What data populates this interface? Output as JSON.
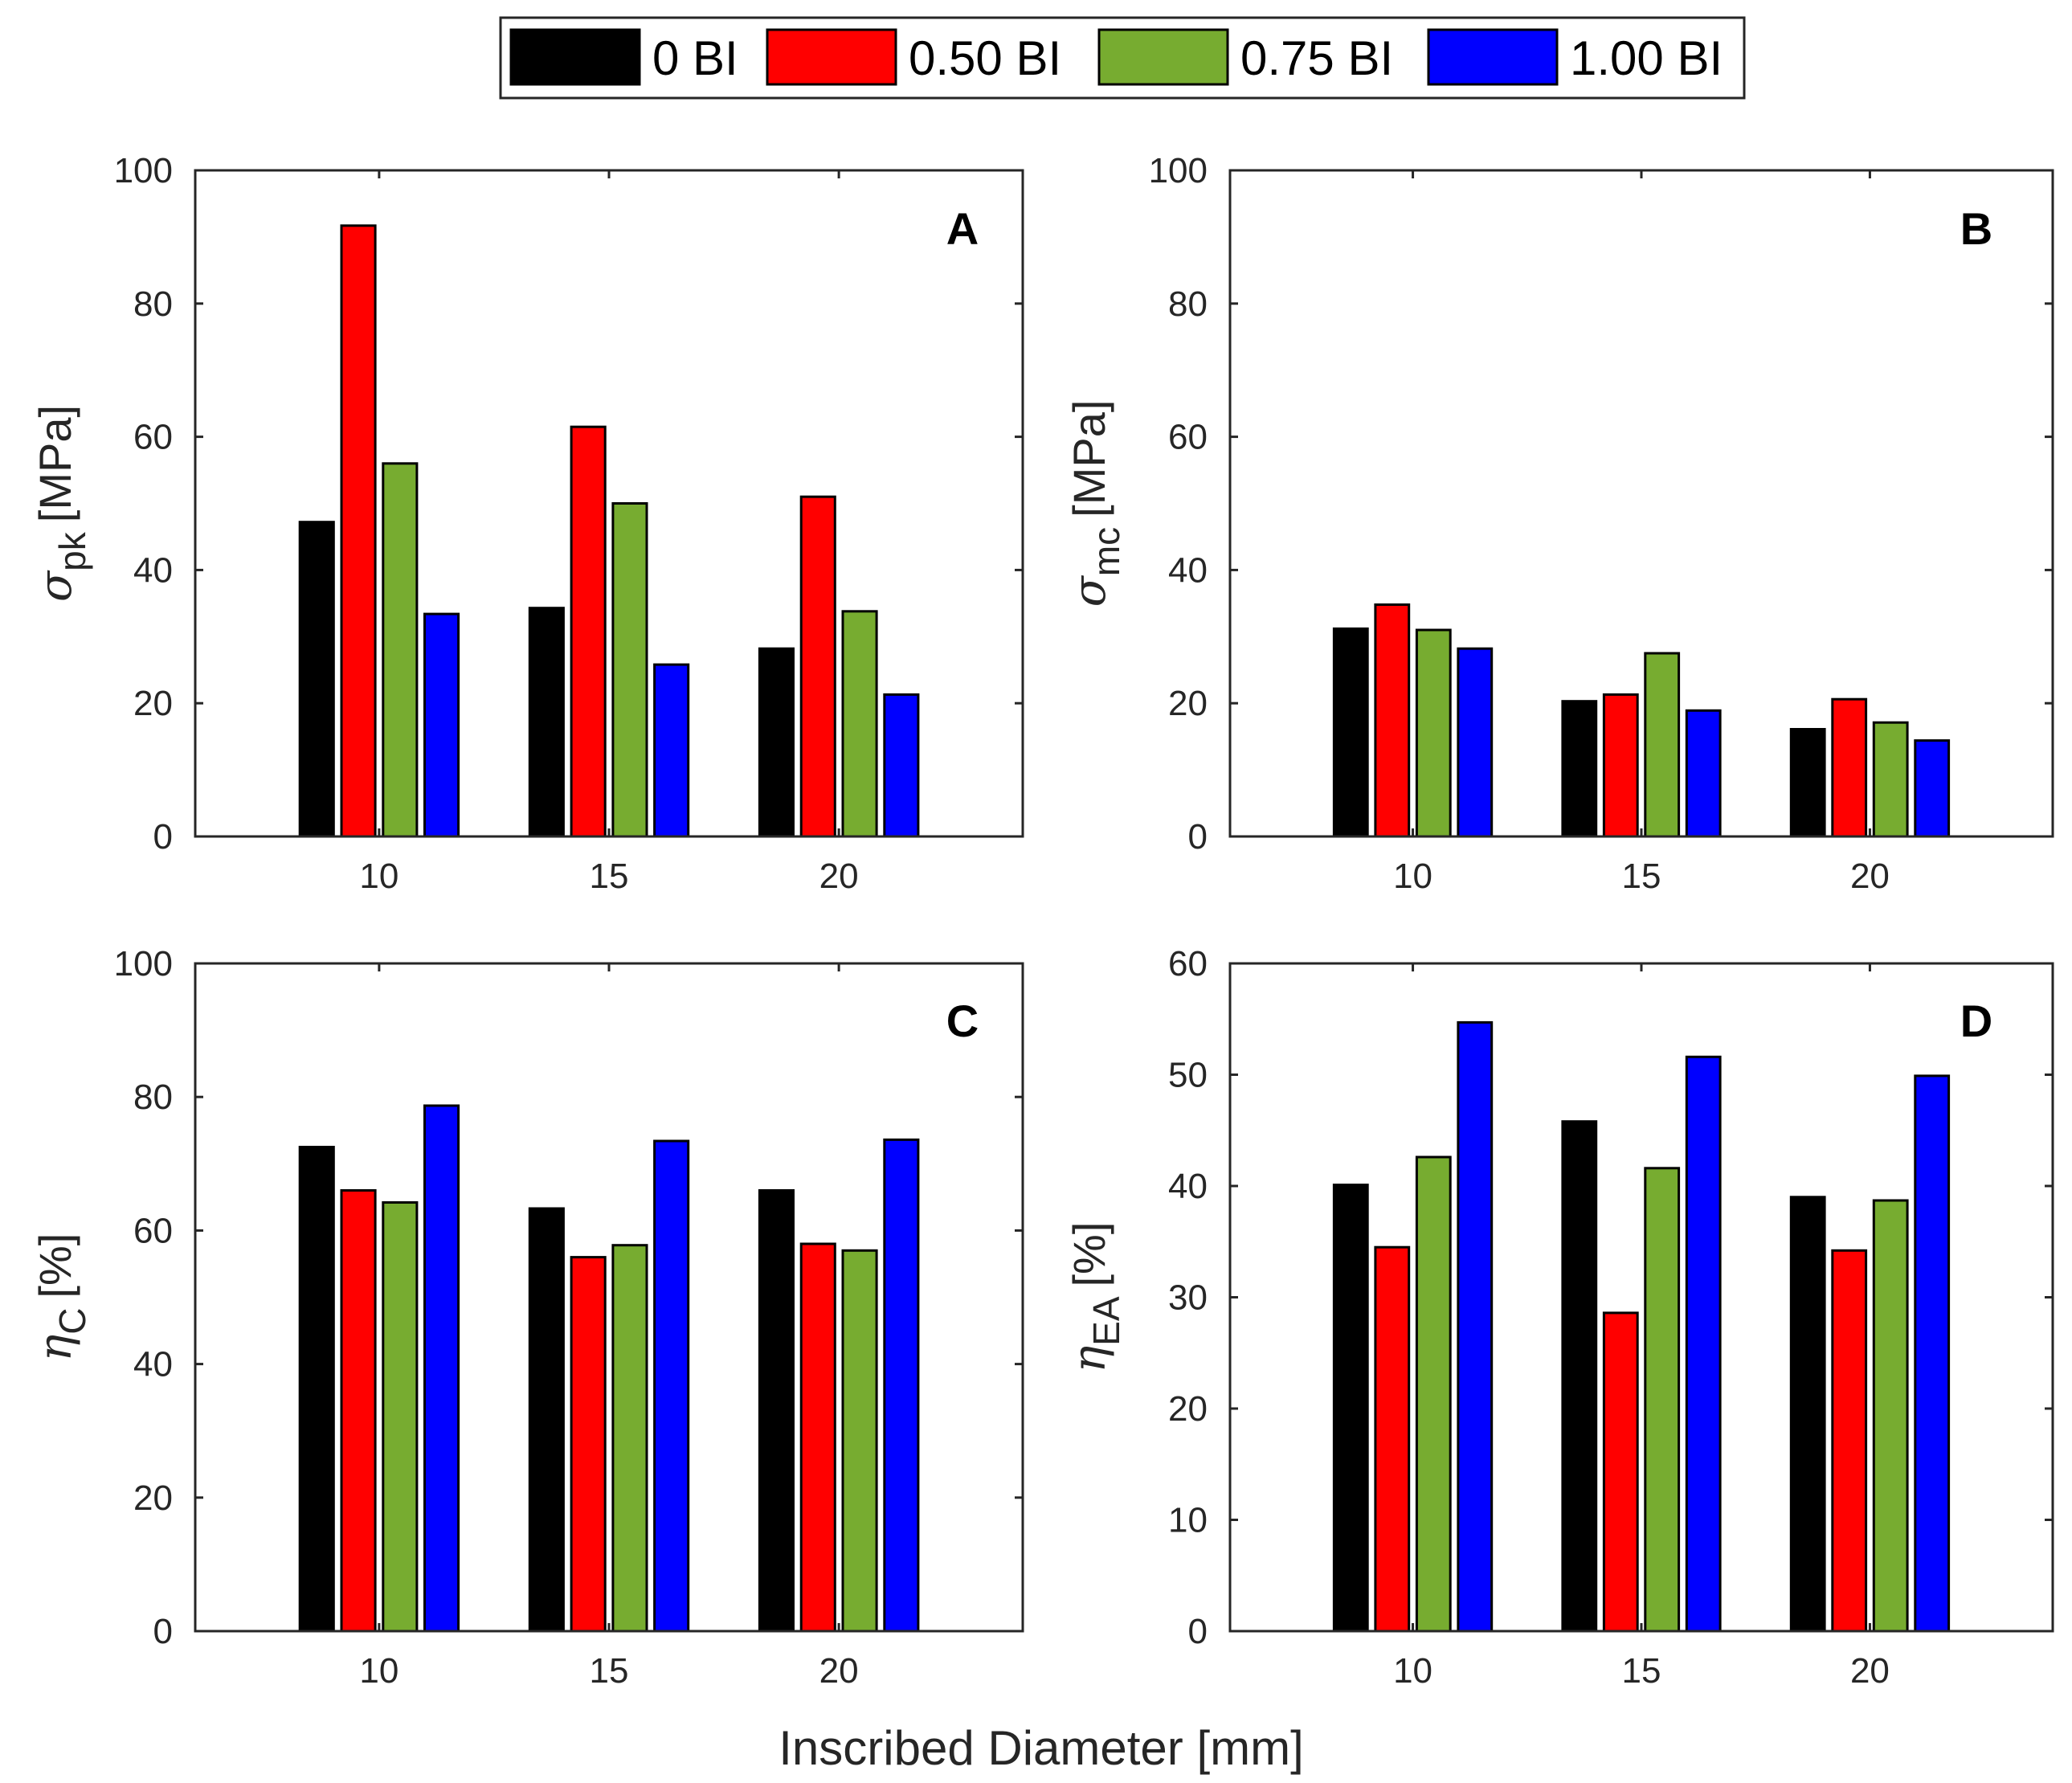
{
  "colors": {
    "0 BI": "#000000",
    "0.50 BI": "#ff0000",
    "0.75 BI": "#77ac30",
    "1.00 BI": "#0000ff"
  },
  "legend": [
    "0 BI",
    "0.50 BI",
    "0.75 BI",
    "1.00 BI"
  ],
  "xlabel": "Inscribed Diameter [mm]",
  "chart_data": [
    {
      "type": "bar",
      "panel": "A",
      "categories": [
        "10",
        "15",
        "20"
      ],
      "ylim": [
        0,
        100
      ],
      "yticks": [
        0,
        20,
        40,
        60,
        80,
        100
      ],
      "ylabel_symbol": "σ",
      "ylabel_sub": "pk",
      "ylabel_unit": "[MPa]",
      "series": [
        {
          "name": "0 BI",
          "values": [
            47.2,
            34.3,
            28.2
          ]
        },
        {
          "name": "0.50 BI",
          "values": [
            91.7,
            61.5,
            51.0
          ]
        },
        {
          "name": "0.75 BI",
          "values": [
            56.0,
            50.0,
            33.8
          ]
        },
        {
          "name": "1.00 BI",
          "values": [
            33.4,
            25.8,
            21.3
          ]
        }
      ]
    },
    {
      "type": "bar",
      "panel": "B",
      "categories": [
        "10",
        "15",
        "20"
      ],
      "ylim": [
        0,
        100
      ],
      "yticks": [
        0,
        20,
        40,
        60,
        80,
        100
      ],
      "ylabel_symbol": "σ",
      "ylabel_sub": "mc",
      "ylabel_unit": "[MPa]",
      "series": [
        {
          "name": "0 BI",
          "values": [
            31.2,
            20.3,
            16.1
          ]
        },
        {
          "name": "0.50 BI",
          "values": [
            34.8,
            21.3,
            20.6
          ]
        },
        {
          "name": "0.75 BI",
          "values": [
            31.0,
            27.5,
            17.1
          ]
        },
        {
          "name": "1.00 BI",
          "values": [
            28.2,
            18.9,
            14.4
          ]
        }
      ]
    },
    {
      "type": "bar",
      "panel": "C",
      "categories": [
        "10",
        "15",
        "20"
      ],
      "ylim": [
        0,
        100
      ],
      "yticks": [
        0,
        20,
        40,
        60,
        80,
        100
      ],
      "ylabel_symbol": "η",
      "ylabel_sub": "C",
      "ylabel_unit": "[%]",
      "series": [
        {
          "name": "0 BI",
          "values": [
            72.5,
            63.3,
            66.0
          ]
        },
        {
          "name": "0.50 BI",
          "values": [
            66.0,
            56.0,
            58.0
          ]
        },
        {
          "name": "0.75 BI",
          "values": [
            64.2,
            57.8,
            57.0
          ]
        },
        {
          "name": "1.00 BI",
          "values": [
            78.7,
            73.4,
            73.6
          ]
        }
      ]
    },
    {
      "type": "bar",
      "panel": "D",
      "categories": [
        "10",
        "15",
        "20"
      ],
      "ylim": [
        0,
        60
      ],
      "yticks": [
        0,
        10,
        20,
        30,
        40,
        50,
        60
      ],
      "ylabel_symbol": "η",
      "ylabel_sub": "EA",
      "ylabel_unit": "[%]",
      "series": [
        {
          "name": "0 BI",
          "values": [
            40.1,
            45.8,
            39.0
          ]
        },
        {
          "name": "0.50 BI",
          "values": [
            34.5,
            28.6,
            34.2
          ]
        },
        {
          "name": "0.75 BI",
          "values": [
            42.6,
            41.6,
            38.7
          ]
        },
        {
          "name": "1.00 BI",
          "values": [
            54.7,
            51.6,
            49.9
          ]
        }
      ]
    }
  ]
}
